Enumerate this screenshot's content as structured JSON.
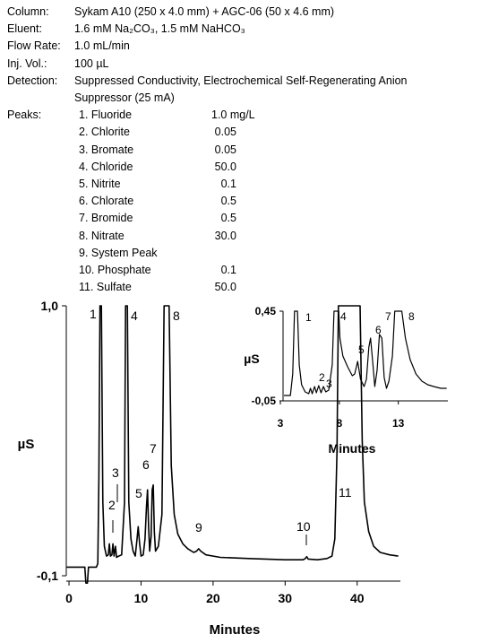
{
  "conditions": {
    "column_label": "Column:",
    "column_value": "Sykam A10 (250 x 4.0 mm) + AGC-06 (50 x 4.6 mm)",
    "eluent_label": "Eluent:",
    "eluent_value": "1.6 mM Na₂CO₃, 1.5 mM NaHCO₃",
    "flow_label": "Flow Rate:",
    "flow_value": "1.0 mL/min",
    "inj_label": "Inj. Vol.:",
    "inj_value": "100 µL",
    "detection_label": "Detection:",
    "detection_line1": "Suppressed Conductivity, Electrochemical Self-Regenerating Anion",
    "detection_line2": "Suppressor (25 mA)",
    "peaks_label": "Peaks:"
  },
  "peak_table": [
    {
      "name": "1. Fluoride",
      "conc": "1.0 mg/L"
    },
    {
      "name": "2. Chlorite",
      "conc": "0.05"
    },
    {
      "name": "3. Bromate",
      "conc": "0.05"
    },
    {
      "name": "4. Chloride",
      "conc": "50.0"
    },
    {
      "name": "5. Nitrite",
      "conc": "0.1"
    },
    {
      "name": "6. Chlorate",
      "conc": "0.5"
    },
    {
      "name": "7. Bromide",
      "conc": "0.5"
    },
    {
      "name": "8. Nitrate",
      "conc": "30.0"
    },
    {
      "name": "9. System Peak",
      "conc": ""
    },
    {
      "name": "10. Phosphate",
      "conc": "0.1"
    },
    {
      "name": "11. Sulfate",
      "conc": "50.0"
    }
  ],
  "chart_data": [
    {
      "type": "line",
      "xlabel": "Minutes",
      "ylabel": "µS",
      "xlim": [
        -1,
        46
      ],
      "ylim": [
        -0.1,
        1.0
      ],
      "x_ticks": [
        0,
        10,
        20,
        30,
        40
      ],
      "y_ticks": [
        "1,0",
        "-0,1"
      ],
      "grid": false,
      "peaks": [
        {
          "label": "1",
          "time": 4.3
        },
        {
          "label": "2",
          "time": 5.6
        },
        {
          "label": "3",
          "time": 6.3
        },
        {
          "label": "4",
          "time": 7.9
        },
        {
          "label": "5",
          "time": 9.6
        },
        {
          "label": "6",
          "time": 10.9
        },
        {
          "label": "7",
          "time": 11.7
        },
        {
          "label": "8",
          "time": 13.5
        },
        {
          "label": "9",
          "time": 18.0
        },
        {
          "label": "10",
          "time": 33.0
        },
        {
          "label": "11",
          "time": 37.5
        }
      ],
      "series": [
        {
          "points": [
            [
              -0.3,
              -0.065
            ],
            [
              2.2,
              -0.065
            ],
            [
              2.35,
              -0.13
            ],
            [
              2.55,
              -0.13
            ],
            [
              2.7,
              -0.065
            ],
            [
              3.8,
              -0.065
            ],
            [
              4.0,
              -0.05
            ],
            [
              4.15,
              0.3
            ],
            [
              4.3,
              1.0
            ],
            [
              4.5,
              1.0
            ],
            [
              4.7,
              0.2
            ],
            [
              4.9,
              0.02
            ],
            [
              5.2,
              -0.02
            ],
            [
              5.45,
              -0.015
            ],
            [
              5.6,
              0.03
            ],
            [
              5.75,
              -0.02
            ],
            [
              5.95,
              -0.015
            ],
            [
              6.1,
              0.03
            ],
            [
              6.25,
              -0.02
            ],
            [
              6.45,
              0.02
            ],
            [
              6.6,
              -0.025
            ],
            [
              6.9,
              -0.02
            ],
            [
              7.3,
              -0.015
            ],
            [
              7.7,
              0.2
            ],
            [
              7.85,
              1.0
            ],
            [
              8.1,
              1.0
            ],
            [
              8.3,
              0.2
            ],
            [
              8.6,
              0.05
            ],
            [
              8.9,
              0.0
            ],
            [
              9.2,
              -0.02
            ],
            [
              9.45,
              0.05
            ],
            [
              9.6,
              0.1
            ],
            [
              9.8,
              0.03
            ],
            [
              10.0,
              -0.02
            ],
            [
              10.3,
              -0.015
            ],
            [
              10.55,
              0.05
            ],
            [
              10.75,
              0.18
            ],
            [
              10.9,
              0.25
            ],
            [
              11.05,
              0.1
            ],
            [
              11.2,
              0.0
            ],
            [
              11.4,
              0.06
            ],
            [
              11.55,
              0.25
            ],
            [
              11.7,
              0.27
            ],
            [
              11.85,
              0.08
            ],
            [
              12.0,
              0.0
            ],
            [
              12.4,
              0.02
            ],
            [
              12.9,
              0.15
            ],
            [
              13.2,
              1.0
            ],
            [
              13.9,
              1.0
            ],
            [
              14.2,
              0.35
            ],
            [
              14.6,
              0.15
            ],
            [
              15.1,
              0.07
            ],
            [
              15.8,
              0.03
            ],
            [
              16.5,
              0.01
            ],
            [
              17.3,
              -0.005
            ],
            [
              17.7,
              0.0
            ],
            [
              18.0,
              0.01
            ],
            [
              18.3,
              0.0
            ],
            [
              19.0,
              -0.015
            ],
            [
              21.0,
              -0.025
            ],
            [
              25.0,
              -0.03
            ],
            [
              30.0,
              -0.035
            ],
            [
              32.5,
              -0.035
            ],
            [
              32.8,
              -0.03
            ],
            [
              33.0,
              -0.022
            ],
            [
              33.2,
              -0.032
            ],
            [
              34.5,
              -0.035
            ],
            [
              35.8,
              -0.03
            ],
            [
              36.5,
              -0.02
            ],
            [
              36.9,
              0.05
            ],
            [
              37.2,
              0.4
            ],
            [
              37.4,
              1.0
            ],
            [
              40.4,
              1.0
            ],
            [
              40.7,
              0.45
            ],
            [
              41.0,
              0.2
            ],
            [
              41.6,
              0.08
            ],
            [
              42.3,
              0.02
            ],
            [
              43.2,
              -0.005
            ],
            [
              44.5,
              -0.015
            ],
            [
              45.7,
              -0.02
            ]
          ]
        }
      ]
    },
    {
      "type": "line",
      "xlabel": "Minutes",
      "ylabel": "µS",
      "xlim": [
        3,
        17.2
      ],
      "ylim": [
        -0.05,
        0.45
      ],
      "x_ticks": [
        3,
        8,
        13
      ],
      "y_ticks": [
        "0,45",
        "-0,05"
      ],
      "grid": false,
      "peaks": [
        {
          "label": "1",
          "time": 4.3
        },
        {
          "label": "2",
          "time": 6.0
        },
        {
          "label": "3",
          "time": 6.5
        },
        {
          "label": "4",
          "time": 7.9
        },
        {
          "label": "5",
          "time": 9.6
        },
        {
          "label": "6",
          "time": 10.9
        },
        {
          "label": "7",
          "time": 11.7
        },
        {
          "label": "8",
          "time": 13.5
        }
      ],
      "series": [
        {
          "points": [
            [
              3.3,
              -0.02
            ],
            [
              3.85,
              -0.02
            ],
            [
              4.05,
              0.1
            ],
            [
              4.2,
              0.45
            ],
            [
              4.45,
              0.45
            ],
            [
              4.6,
              0.15
            ],
            [
              4.8,
              0.04
            ],
            [
              5.1,
              0.0
            ],
            [
              5.4,
              -0.01
            ],
            [
              5.55,
              0.02
            ],
            [
              5.7,
              -0.01
            ],
            [
              5.9,
              0.03
            ],
            [
              6.05,
              -0.005
            ],
            [
              6.25,
              0.035
            ],
            [
              6.45,
              -0.005
            ],
            [
              6.65,
              0.03
            ],
            [
              6.85,
              0.0
            ],
            [
              7.1,
              0.01
            ],
            [
              7.4,
              0.15
            ],
            [
              7.55,
              0.45
            ],
            [
              7.95,
              0.45
            ],
            [
              8.05,
              0.3
            ],
            [
              8.3,
              0.2
            ],
            [
              8.7,
              0.14
            ],
            [
              9.1,
              0.09
            ],
            [
              9.3,
              0.1
            ],
            [
              9.55,
              0.17
            ],
            [
              9.8,
              0.07
            ],
            [
              10.1,
              0.03
            ],
            [
              10.3,
              0.07
            ],
            [
              10.5,
              0.25
            ],
            [
              10.65,
              0.3
            ],
            [
              10.85,
              0.15
            ],
            [
              11.0,
              0.03
            ],
            [
              11.2,
              0.12
            ],
            [
              11.4,
              0.32
            ],
            [
              11.6,
              0.3
            ],
            [
              11.8,
              0.08
            ],
            [
              12.0,
              0.02
            ],
            [
              12.2,
              0.06
            ],
            [
              12.5,
              0.2
            ],
            [
              12.7,
              0.45
            ],
            [
              13.3,
              0.45
            ],
            [
              13.6,
              0.3
            ],
            [
              14.0,
              0.18
            ],
            [
              14.5,
              0.1
            ],
            [
              15.0,
              0.06
            ],
            [
              15.5,
              0.04
            ],
            [
              16.0,
              0.03
            ],
            [
              16.6,
              0.02
            ],
            [
              17.1,
              0.02
            ]
          ]
        }
      ]
    }
  ]
}
